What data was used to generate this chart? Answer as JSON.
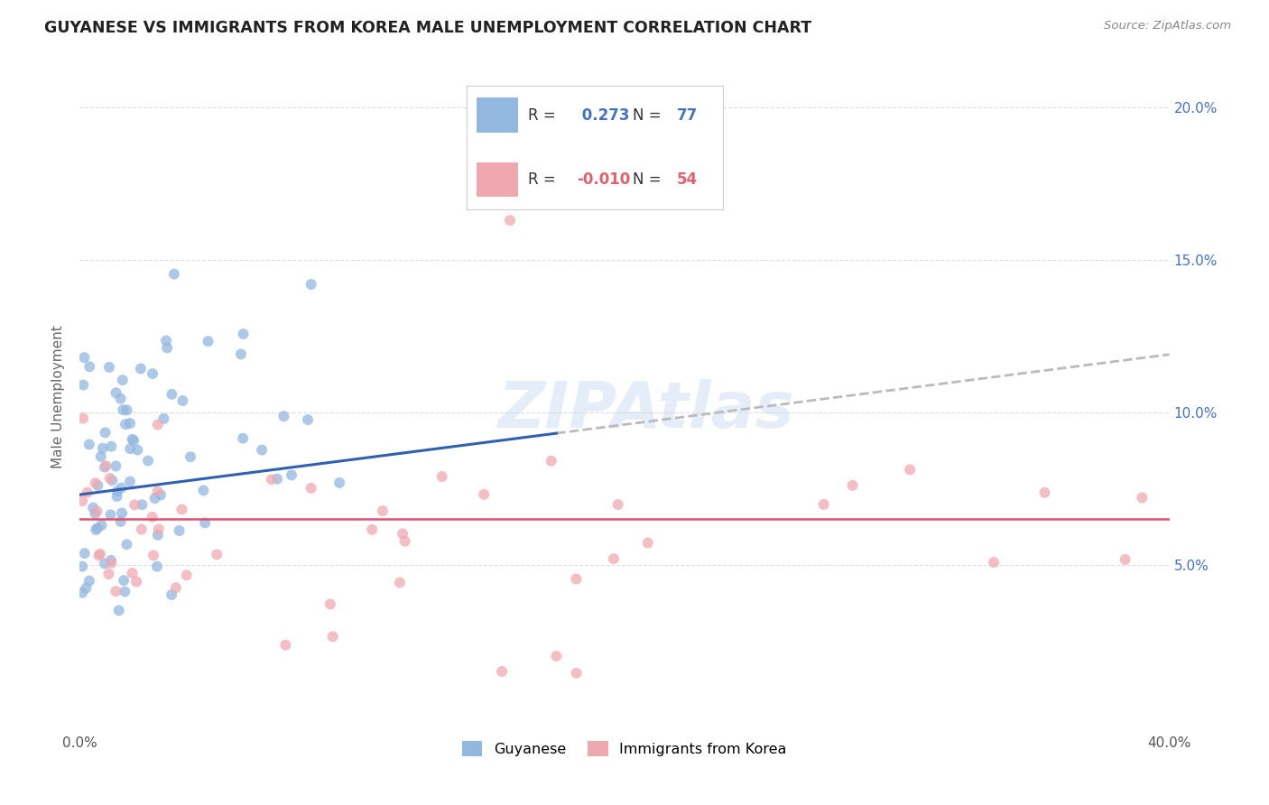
{
  "title": "GUYANESE VS IMMIGRANTS FROM KOREA MALE UNEMPLOYMENT CORRELATION CHART",
  "source": "Source: ZipAtlas.com",
  "ylabel": "Male Unemployment",
  "x_min": 0.0,
  "x_max": 0.4,
  "y_min": 0.0,
  "y_max": 0.215,
  "y_ticks": [
    0.05,
    0.1,
    0.15,
    0.2
  ],
  "y_tick_labels": [
    "5.0%",
    "10.0%",
    "15.0%",
    "20.0%"
  ],
  "watermark": "ZIPAtlas",
  "legend_label1": "Guyanese",
  "legend_label2": "Immigrants from Korea",
  "R1": 0.273,
  "N1": 77,
  "R2": -0.01,
  "N2": 54,
  "blue_color": "#92b8e0",
  "pink_color": "#f0a8b0",
  "blue_line_color": "#3060b0",
  "pink_line_color": "#e05070",
  "grey_dash_color": "#bbbbbb",
  "title_color": "#222222",
  "source_color": "#888888",
  "tick_color": "#4472c4",
  "ylabel_color": "#666666",
  "grid_color": "#dddddd",
  "legend_border_color": "#cccccc",
  "blue_r_color": "#4472c4",
  "pink_r_color": "#e06070"
}
